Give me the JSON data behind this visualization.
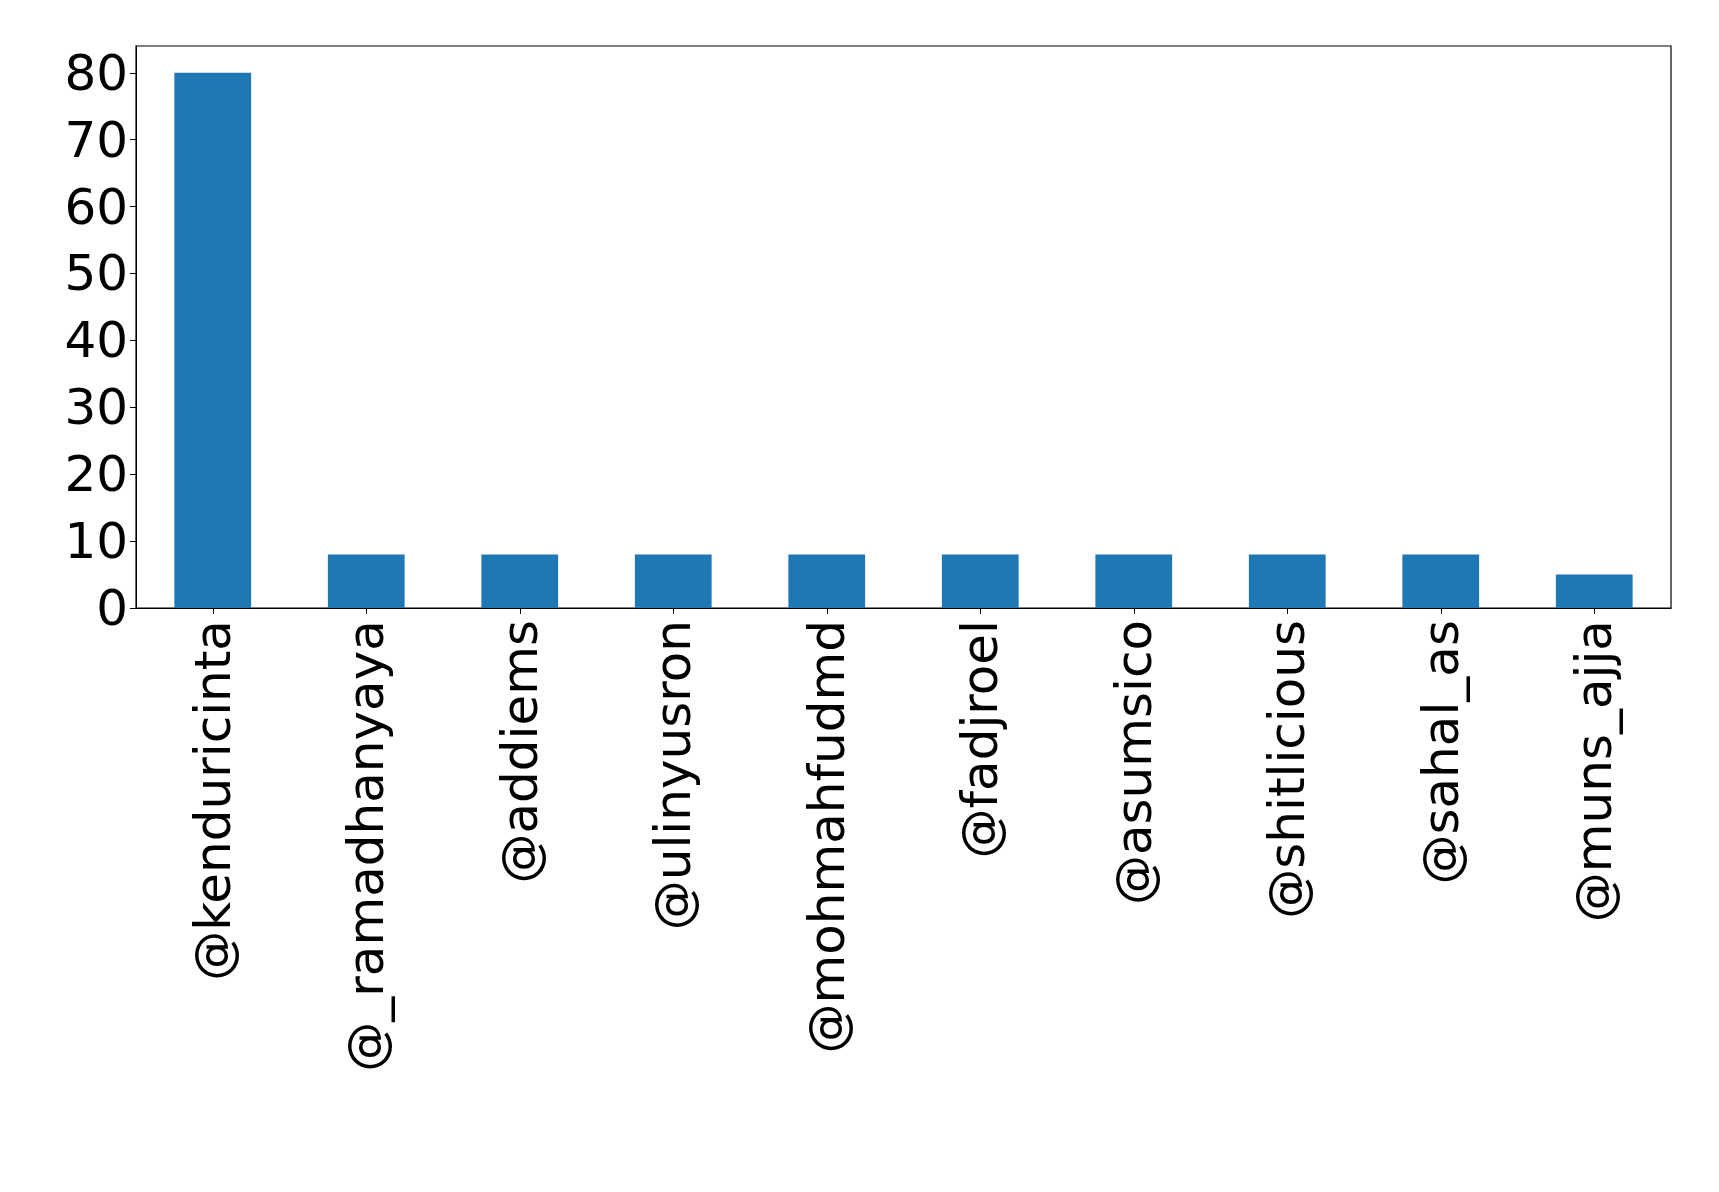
{
  "chart_data": {
    "type": "bar",
    "categories": [
      "@kenduricinta",
      "@_ramadhanyaya",
      "@addiems",
      "@ulinyusron",
      "@mohmahfudmd",
      "@fadjroel",
      "@asumsico",
      "@shitlicious",
      "@sahal_as",
      "@muns_ajja"
    ],
    "values": [
      80,
      8,
      8,
      8,
      8,
      8,
      8,
      8,
      8,
      5
    ],
    "color": "#1f77b4",
    "ylim": [
      0,
      84
    ],
    "yticks": [
      0,
      10,
      20,
      30,
      40,
      50,
      60,
      70,
      80
    ],
    "grid": false
  }
}
